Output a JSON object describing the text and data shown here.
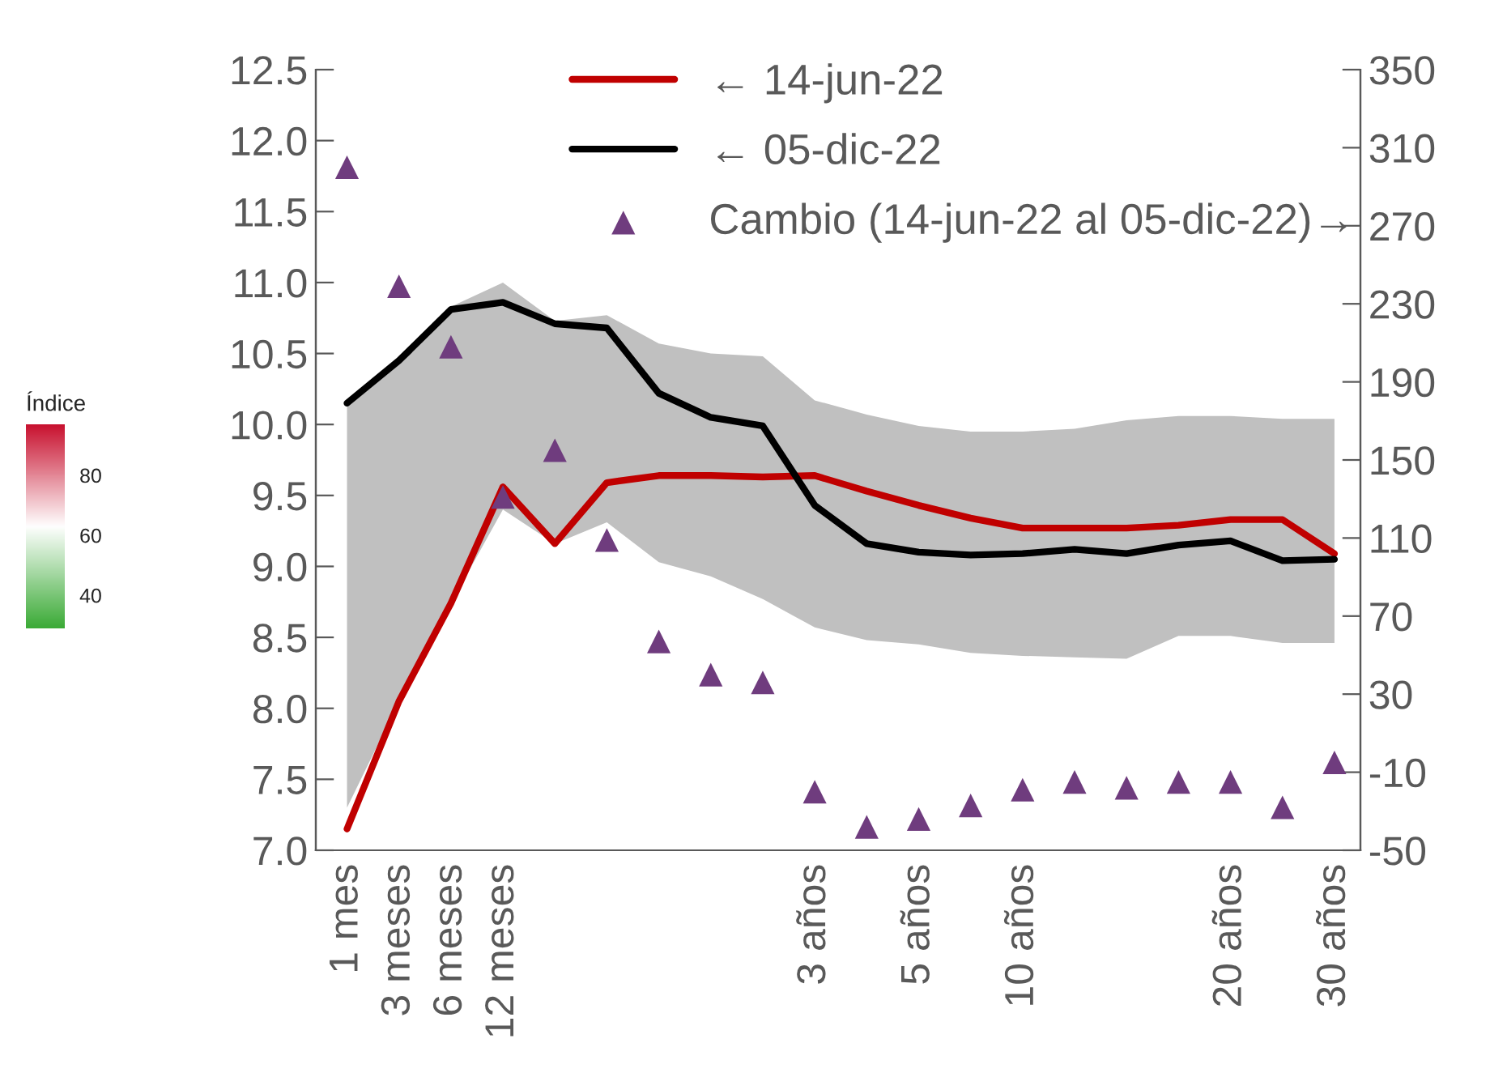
{
  "chart_data": {
    "type": "line",
    "categories": [
      "1 mes",
      "3 meses",
      "6 meses",
      "12 meses",
      null,
      null,
      null,
      null,
      null,
      "3 años",
      null,
      "5 años",
      null,
      "10 años",
      null,
      null,
      null,
      "20 años",
      null,
      "30 años"
    ],
    "series": [
      {
        "name": "← 14-jun-22",
        "color": "#c00000",
        "values": [
          7.15,
          8.05,
          8.74,
          9.56,
          9.16,
          9.59,
          9.64,
          9.64,
          9.63,
          9.64,
          9.53,
          9.43,
          9.34,
          9.27,
          9.27,
          9.27,
          9.29,
          9.33,
          9.33,
          9.09
        ]
      },
      {
        "name": "← 05-dic-22",
        "color": "#000000",
        "values": [
          10.15,
          10.45,
          10.81,
          10.86,
          10.71,
          10.68,
          10.22,
          10.05,
          9.99,
          9.43,
          9.16,
          9.1,
          9.08,
          9.09,
          9.12,
          9.09,
          9.15,
          9.18,
          9.04,
          9.05
        ],
        "upper": [
          10.15,
          10.45,
          10.83,
          11.0,
          10.73,
          10.77,
          10.57,
          10.5,
          10.48,
          10.17,
          10.07,
          9.99,
          9.95,
          9.95,
          9.97,
          10.03,
          10.06,
          10.06,
          10.04,
          10.04
        ],
        "lower": [
          7.3,
          8.05,
          8.74,
          9.4,
          9.16,
          9.31,
          9.03,
          8.93,
          8.77,
          8.57,
          8.48,
          8.45,
          8.39,
          8.37,
          8.36,
          8.35,
          8.51,
          8.51,
          8.46,
          8.46
        ]
      },
      {
        "name": "Cambio (14-jun-22 al 05-dic-22)→",
        "type": "scatter",
        "axis": "y2",
        "marker": "triangle",
        "color": "#6f3c7e",
        "values": [
          300,
          239,
          208,
          131,
          155,
          109,
          57,
          40,
          36,
          -20,
          -38,
          -34,
          -27,
          -19,
          -15,
          -18,
          -15,
          -15,
          -28,
          -5
        ]
      }
    ],
    "ylim": [
      7.0,
      12.5
    ],
    "yticks": [
      {
        "value": 7,
        "label": "7.0"
      },
      7.5,
      {
        "value": 8,
        "label": "8.0"
      },
      8.5,
      {
        "value": 9,
        "label": "9.0"
      },
      9.5,
      {
        "value": 10,
        "label": "10.0"
      },
      10.5,
      {
        "value": 11,
        "label": "11.0"
      },
      11.5,
      {
        "value": 12,
        "label": "12.0"
      },
      12.5
    ],
    "y2lim": [
      -50,
      350
    ],
    "y2ticks": [
      -50,
      -10,
      30,
      70,
      110,
      150,
      190,
      230,
      270,
      310,
      350
    ],
    "legend": "top",
    "grid": false,
    "clabel": "Índice",
    "clim": [
      29,
      97
    ],
    "cticks": [
      40,
      60,
      80
    ]
  }
}
